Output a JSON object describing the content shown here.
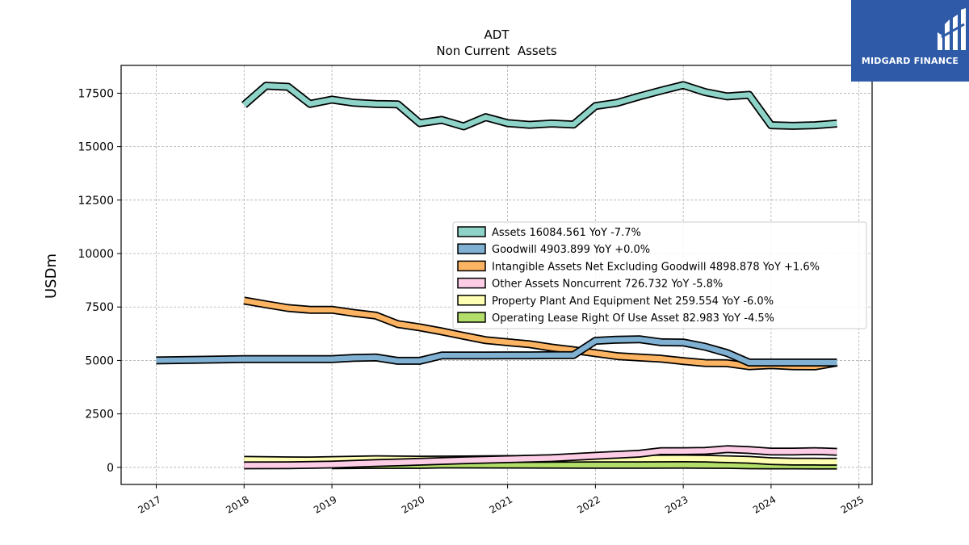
{
  "colors": {
    "assets": "#8dd3c7",
    "goodwill": "#80b1d3",
    "intangible": "#fdb462",
    "other_noncurrent": "#fccde5",
    "ppe": "#ffffb3",
    "oplease": "#b3de69",
    "grid": "#b0b0b0",
    "logo_bg": "#2e5aa8"
  },
  "logo": {
    "name": "MIDGARD FINANCE",
    "icon": "midgard-logo-icon"
  },
  "chart_data": {
    "type": "line",
    "title": "ADT",
    "subtitle": "Non Current  Assets",
    "ylabel": "USDm",
    "xlabel": "",
    "xlim": [
      2016.6,
      2025.15
    ],
    "ylim": [
      -800,
      18800
    ],
    "yticks": [
      0,
      2500,
      5000,
      7500,
      10000,
      12500,
      15000,
      17500
    ],
    "ytick_labels": [
      "0",
      "2500",
      "5000",
      "7500",
      "10000",
      "12500",
      "15000",
      "17500"
    ],
    "xticks": [
      2017,
      2018,
      2019,
      2020,
      2021,
      2022,
      2023,
      2024,
      2025
    ],
    "xtick_labels": [
      "2017",
      "2018",
      "2019",
      "2020",
      "2021",
      "2022",
      "2023",
      "2024",
      "2025"
    ],
    "grid": true,
    "legend_position": "right",
    "series": [
      {
        "name": "Assets",
        "legend": "Assets  16084.561 YoY -7.7%",
        "color": "#8dd3c7",
        "x": [
          2018.0,
          2018.25,
          2018.5,
          2018.75,
          2019.0,
          2019.25,
          2019.5,
          2019.75,
          2020.0,
          2020.25,
          2020.5,
          2020.75,
          2021.0,
          2021.25,
          2021.5,
          2021.75,
          2022.0,
          2022.25,
          2022.5,
          2022.75,
          2023.0,
          2023.25,
          2023.5,
          2023.75,
          2024.0,
          2024.25,
          2024.5,
          2024.75
        ],
        "y": [
          16950,
          17850,
          17800,
          17000,
          17200,
          17050,
          17000,
          16980,
          16100,
          16250,
          15950,
          16380,
          16100,
          16020,
          16080,
          16030,
          16900,
          17050,
          17350,
          17620,
          17880,
          17550,
          17350,
          17420,
          16000,
          15970,
          16000,
          16080
        ]
      },
      {
        "name": "Goodwill",
        "legend": "Goodwill  4903.899 YoY +0.0%",
        "color": "#80b1d3",
        "x": [
          2017.0,
          2018.0,
          2018.5,
          2019.0,
          2019.25,
          2019.5,
          2019.75,
          2020.0,
          2020.25,
          2020.5,
          2020.75,
          2021.0,
          2021.25,
          2021.5,
          2021.75,
          2022.0,
          2022.25,
          2022.5,
          2022.75,
          2023.0,
          2023.25,
          2023.5,
          2023.75,
          2024.0,
          2024.25,
          2024.5,
          2024.75
        ],
        "y": [
          5000,
          5060,
          5060,
          5060,
          5120,
          5140,
          4980,
          4980,
          5230,
          5230,
          5230,
          5240,
          5240,
          5245,
          5250,
          5920,
          5970,
          5990,
          5850,
          5840,
          5640,
          5350,
          4904,
          4904,
          4904,
          4904,
          4904
        ]
      },
      {
        "name": "Intangible Assets Net Excluding Goodwill",
        "legend": "Intangible Assets Net Excluding Goodwill  4898.878 YoY +1.6%",
        "color": "#fdb462",
        "x": [
          2018.0,
          2018.25,
          2018.5,
          2018.75,
          2019.0,
          2019.25,
          2019.5,
          2019.75,
          2020.0,
          2020.25,
          2020.5,
          2020.75,
          2021.0,
          2021.25,
          2021.5,
          2021.75,
          2022.0,
          2022.25,
          2022.5,
          2022.75,
          2023.0,
          2023.25,
          2023.5,
          2023.75,
          2024.0,
          2024.25,
          2024.5,
          2024.75
        ],
        "y": [
          7800,
          7620,
          7450,
          7370,
          7370,
          7220,
          7100,
          6700,
          6550,
          6360,
          6150,
          5950,
          5850,
          5760,
          5600,
          5480,
          5340,
          5200,
          5140,
          5080,
          4970,
          4880,
          4870,
          4730,
          4780,
          4730,
          4720,
          4899
        ]
      },
      {
        "name": "Other Assets Noncurrent",
        "legend": "Other Assets Noncurrent  726.732 YoY -5.8%",
        "color": "#fccde5",
        "x": [
          2018.0,
          2018.5,
          2019.0,
          2019.5,
          2020.0,
          2020.5,
          2021.0,
          2021.5,
          2022.0,
          2022.5,
          2022.75,
          2023.0,
          2023.25,
          2023.5,
          2023.75,
          2024.0,
          2024.25,
          2024.5,
          2024.75
        ],
        "y": [
          90,
          95,
          130,
          200,
          260,
          330,
          380,
          430,
          540,
          640,
          760,
          760,
          770,
          850,
          810,
          740,
          740,
          760,
          727
        ]
      },
      {
        "name": "Property Plant And Equipment Net",
        "legend": "Property Plant And Equipment Net  259.554 YoY -6.0%",
        "color": "#ffffb3",
        "x": [
          2018.0,
          2018.5,
          2018.75,
          2019.0,
          2019.25,
          2019.5,
          2019.75,
          2020.0,
          2020.5,
          2021.0,
          2021.5,
          2022.0,
          2022.5,
          2023.0,
          2023.25,
          2023.5,
          2023.75,
          2024.0,
          2024.25,
          2024.5,
          2024.75
        ],
        "y": [
          350,
          330,
          320,
          340,
          360,
          380,
          370,
          360,
          370,
          390,
          400,
          410,
          410,
          420,
          410,
          380,
          350,
          290,
          270,
          265,
          260
        ]
      },
      {
        "name": "Operating Lease Right Of Use Asset",
        "legend": "Operating Lease Right Of Use Asset  82.983 YoY -4.5%",
        "color": "#b3de69",
        "x": [
          2019.0,
          2019.5,
          2020.0,
          2020.25,
          2020.5,
          2021.0,
          2021.5,
          2022.0,
          2022.5,
          2023.0,
          2023.5,
          2023.75,
          2024.0,
          2024.25,
          2024.5,
          2024.75
        ],
        "y": [
          100,
          110,
          110,
          130,
          130,
          125,
          120,
          118,
          115,
          120,
          110,
          90,
          88,
          86,
          84,
          83
        ]
      }
    ]
  }
}
